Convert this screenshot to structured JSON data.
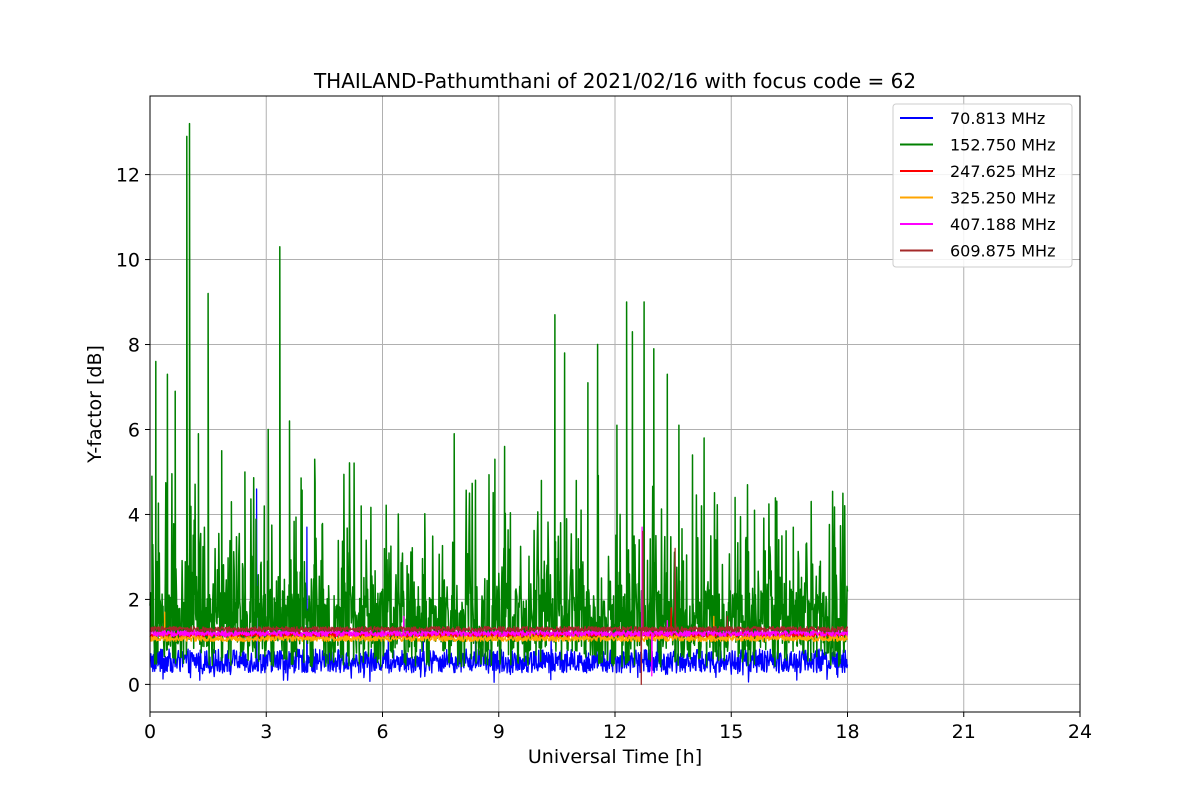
{
  "chart_data": {
    "type": "line",
    "title": "THAILAND-Pathumthani of 2021/02/16 with focus code = 62",
    "xlabel": "Universal Time [h]",
    "ylabel": "Y-factor [dB]",
    "xlim": [
      0,
      24
    ],
    "ylim": [
      -0.65,
      13.85
    ],
    "xticks": [
      0,
      3,
      6,
      9,
      12,
      15,
      18,
      21,
      24
    ],
    "yticks": [
      0,
      2,
      4,
      6,
      8,
      10,
      12
    ],
    "grid": true,
    "legend_position": "top-right",
    "data_x_range": [
      0,
      18
    ],
    "series": [
      {
        "name": " 70.813 MHz",
        "color": "#0000ff",
        "baseline": 0.55,
        "noise": 0.28,
        "spikes": [
          [
            0.2,
            1.8
          ],
          [
            2.75,
            4.6
          ],
          [
            4.05,
            3.7
          ],
          [
            6.15,
            1.2
          ],
          [
            7.05,
            2.3
          ],
          [
            8.4,
            1.5
          ],
          [
            10.35,
            1.2
          ],
          [
            11.8,
            1.4
          ],
          [
            12.3,
            1.8
          ],
          [
            13.1,
            1.6
          ]
        ]
      },
      {
        "name": "152.750 MHz",
        "color": "#008000",
        "baseline": 1.3,
        "noise": 0.9,
        "spikes": [
          [
            0.05,
            4.9
          ],
          [
            0.15,
            7.6
          ],
          [
            0.45,
            7.3
          ],
          [
            0.65,
            6.9
          ],
          [
            0.95,
            12.9
          ],
          [
            1.02,
            13.2
          ],
          [
            1.25,
            5.9
          ],
          [
            1.5,
            9.2
          ],
          [
            1.85,
            5.5
          ],
          [
            2.1,
            4.3
          ],
          [
            2.45,
            5.0
          ],
          [
            2.95,
            4.2
          ],
          [
            3.05,
            6.0
          ],
          [
            3.35,
            10.3
          ],
          [
            3.6,
            6.2
          ],
          [
            4.25,
            5.3
          ],
          [
            4.45,
            3.5
          ],
          [
            5.1,
            3.1
          ],
          [
            5.45,
            4.2
          ],
          [
            6.1,
            3.1
          ],
          [
            7.1,
            3.3
          ],
          [
            7.85,
            5.9
          ],
          [
            8.4,
            4.3
          ],
          [
            8.9,
            5.3
          ],
          [
            9.15,
            5.6
          ],
          [
            10.1,
            4.8
          ],
          [
            10.45,
            8.7
          ],
          [
            10.7,
            7.8
          ],
          [
            11.0,
            4.8
          ],
          [
            11.3,
            7.1
          ],
          [
            11.55,
            8.0
          ],
          [
            12.05,
            6.1
          ],
          [
            12.3,
            9.0
          ],
          [
            12.45,
            8.3
          ],
          [
            12.75,
            9.0
          ],
          [
            13.0,
            7.9
          ],
          [
            13.35,
            7.3
          ],
          [
            13.65,
            6.1
          ],
          [
            14.0,
            5.4
          ],
          [
            14.3,
            5.8
          ],
          [
            14.6,
            3.4
          ],
          [
            15.1,
            4.4
          ],
          [
            15.6,
            4.1
          ],
          [
            16.15,
            4.0
          ],
          [
            16.6,
            3.7
          ],
          [
            17.3,
            2.9
          ]
        ]
      },
      {
        "name": "247.625 MHz",
        "color": "#ff0000",
        "baseline": 1.17,
        "noise": 0.06,
        "spikes": [
          [
            12.7,
            2.2
          ],
          [
            13.45,
            1.8
          ]
        ]
      },
      {
        "name": "325.250 MHz",
        "color": "#ffa500",
        "baseline": 1.08,
        "noise": 0.07,
        "spikes": [
          [
            0.38,
            1.7
          ],
          [
            9.85,
            1.3
          ],
          [
            14.55,
            1.6
          ]
        ]
      },
      {
        "name": "407.188 MHz",
        "color": "#ff00ff",
        "baseline": 1.2,
        "noise": 0.07,
        "spikes": [
          [
            6.55,
            1.6
          ],
          [
            12.7,
            3.7
          ],
          [
            12.95,
            0.2
          ],
          [
            13.35,
            1.5
          ]
        ]
      },
      {
        "name": "609.875 MHz",
        "color": "#a52a2a",
        "baseline": 1.3,
        "noise": 0.06,
        "spikes": [
          [
            12.68,
            0.0
          ],
          [
            12.72,
            3.6
          ],
          [
            13.55,
            3.2
          ],
          [
            14.9,
            1.6
          ]
        ]
      }
    ]
  }
}
